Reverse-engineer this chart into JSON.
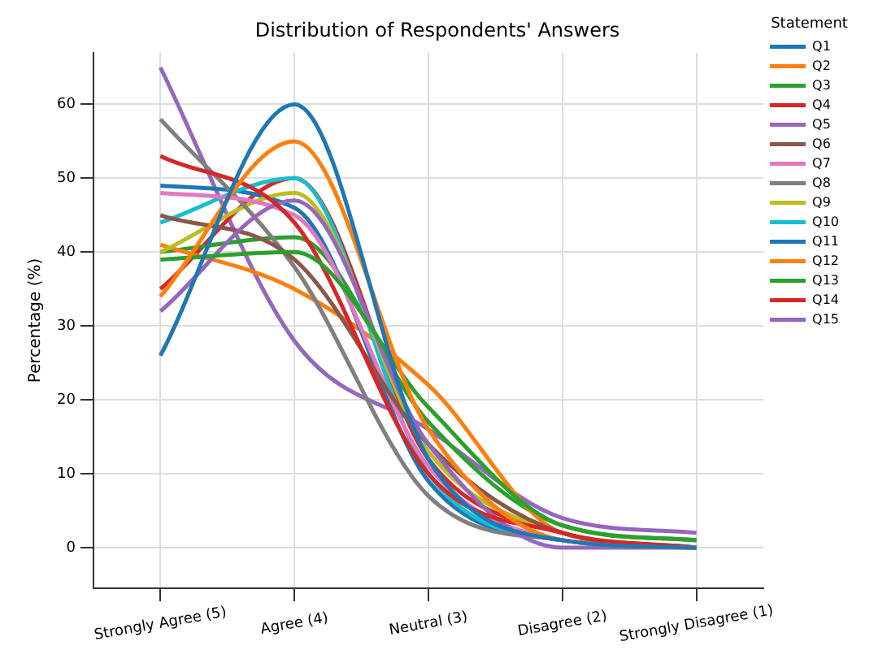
{
  "chart_data": {
    "type": "line",
    "title": "Distribution of Respondents' Answers",
    "ylabel": "Percentage (%)",
    "legend_title": "Statement",
    "categories": [
      "Strongly Agree (5)",
      "Agree (4)",
      "Neutral (3)",
      "Disagree (2)",
      "Strongly Disagree (1)"
    ],
    "series": [
      {
        "name": "Q1",
        "color": "#1f77b4",
        "values": [
          26,
          60,
          12,
          1,
          0
        ]
      },
      {
        "name": "Q2",
        "color": "#ff7f0e",
        "values": [
          34,
          55,
          16,
          1,
          0
        ]
      },
      {
        "name": "Q3",
        "color": "#2ca02c",
        "values": [
          39,
          40,
          19,
          3,
          1
        ]
      },
      {
        "name": "Q4",
        "color": "#d62728",
        "values": [
          53,
          44,
          10,
          2,
          0
        ]
      },
      {
        "name": "Q5",
        "color": "#9467bd",
        "values": [
          32,
          47,
          14,
          0,
          0
        ]
      },
      {
        "name": "Q6",
        "color": "#8c564b",
        "values": [
          45,
          39,
          14,
          2,
          0
        ]
      },
      {
        "name": "Q7",
        "color": "#e377c2",
        "values": [
          48,
          45,
          11,
          1,
          0
        ]
      },
      {
        "name": "Q8",
        "color": "#7f7f7f",
        "values": [
          58,
          38,
          7,
          1,
          0
        ]
      },
      {
        "name": "Q9",
        "color": "#bcbd22",
        "values": [
          40,
          48,
          13,
          2,
          0
        ]
      },
      {
        "name": "Q10",
        "color": "#17becf",
        "values": [
          44,
          50,
          10,
          1,
          0
        ]
      },
      {
        "name": "Q11",
        "color": "#1f77b4",
        "values": [
          49,
          46,
          9,
          1,
          0
        ]
      },
      {
        "name": "Q12",
        "color": "#ff7f0e",
        "values": [
          41,
          35,
          22,
          2,
          0
        ]
      },
      {
        "name": "Q13",
        "color": "#2ca02c",
        "values": [
          40,
          42,
          17,
          3,
          1
        ]
      },
      {
        "name": "Q14",
        "color": "#d62728",
        "values": [
          35,
          50,
          12,
          2,
          0
        ]
      },
      {
        "name": "Q15",
        "color": "#9467bd",
        "values": [
          65,
          28,
          16,
          4,
          2
        ]
      }
    ],
    "ylim": [
      -5.5,
      67
    ],
    "yticks": [
      0,
      10,
      20,
      30,
      40,
      50,
      60
    ],
    "grid": true,
    "legend": "top right",
    "marker": "none",
    "line_style": "solid"
  }
}
